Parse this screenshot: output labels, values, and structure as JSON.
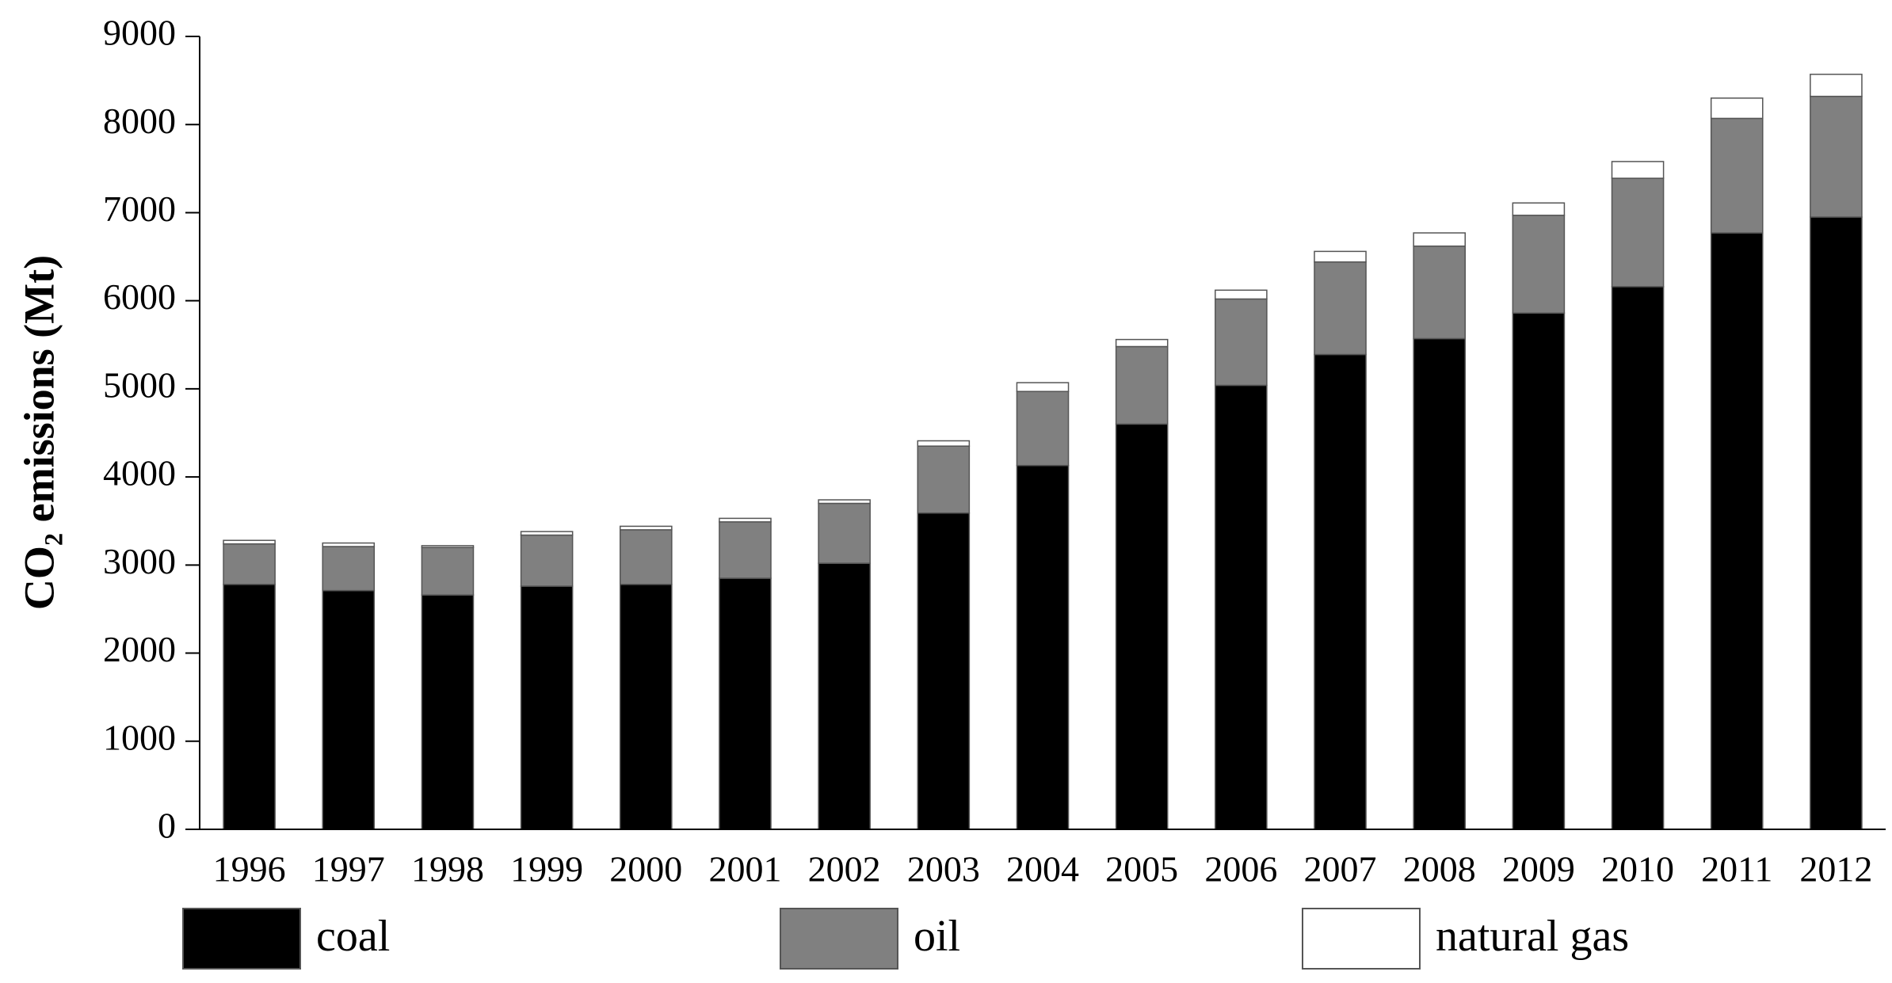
{
  "chart_data": {
    "type": "stacked_bar",
    "y_label": "CO₂ emissions (Mt)",
    "categories": [
      "1996",
      "1997",
      "1998",
      "1999",
      "2000",
      "2001",
      "2002",
      "2003",
      "2004",
      "2005",
      "2006",
      "2007",
      "2008",
      "2009",
      "2010",
      "2011",
      "2012"
    ],
    "series": [
      {
        "name": "coal",
        "color": "#000000",
        "values": [
          2780,
          2710,
          2660,
          2760,
          2780,
          2850,
          3020,
          3590,
          4130,
          4600,
          5040,
          5390,
          5570,
          5860,
          6160,
          6770,
          6950
        ]
      },
      {
        "name": "oil",
        "color": "#808080",
        "values": [
          460,
          500,
          540,
          580,
          620,
          640,
          680,
          760,
          840,
          880,
          980,
          1050,
          1050,
          1110,
          1230,
          1300,
          1370
        ]
      },
      {
        "name": "natural gas",
        "color": "#ffffff",
        "values": [
          40,
          40,
          20,
          40,
          40,
          40,
          40,
          60,
          100,
          80,
          100,
          120,
          150,
          140,
          190,
          230,
          250
        ]
      }
    ],
    "ylim": [
      0,
      9000
    ],
    "yticks": [
      0,
      1000,
      2000,
      3000,
      4000,
      5000,
      6000,
      7000,
      8000,
      9000
    ],
    "legend": "bottom"
  }
}
